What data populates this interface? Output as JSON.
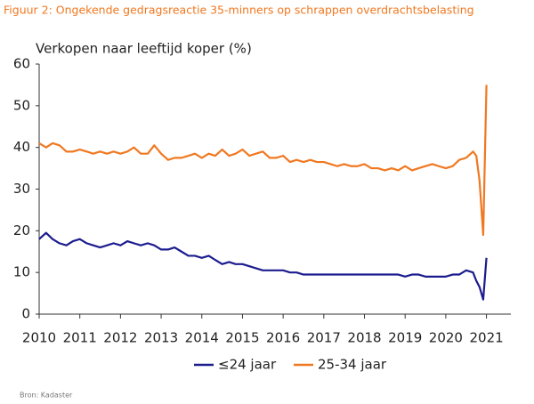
{
  "chart_data": {
    "type": "line",
    "title": "Figuur 2: Ongekende gedragsreactie 35-minners op schrappen overdrachtsbelasting",
    "ylabel": "Verkopen naar leeftijd koper (%)",
    "source": "Bron: Kadaster",
    "x": [
      2010,
      2010.17,
      2010.33,
      2010.5,
      2010.67,
      2010.83,
      2011,
      2011.17,
      2011.33,
      2011.5,
      2011.67,
      2011.83,
      2012,
      2012.17,
      2012.33,
      2012.5,
      2012.67,
      2012.83,
      2013,
      2013.17,
      2013.33,
      2013.5,
      2013.67,
      2013.83,
      2014,
      2014.17,
      2014.33,
      2014.5,
      2014.67,
      2014.83,
      2015,
      2015.17,
      2015.33,
      2015.5,
      2015.67,
      2015.83,
      2016,
      2016.17,
      2016.33,
      2016.5,
      2016.67,
      2016.83,
      2017,
      2017.17,
      2017.33,
      2017.5,
      2017.67,
      2017.83,
      2018,
      2018.17,
      2018.33,
      2018.5,
      2018.67,
      2018.83,
      2019,
      2019.17,
      2019.33,
      2019.5,
      2019.67,
      2019.83,
      2020,
      2020.17,
      2020.33,
      2020.5,
      2020.67,
      2020.75,
      2020.83,
      2020.92,
      2021
    ],
    "series": [
      {
        "name": "≤24 jaar",
        "color": "#1c1c8f",
        "values": [
          18,
          19.5,
          18,
          17,
          16.5,
          17.5,
          18,
          17,
          16.5,
          16,
          16.5,
          17,
          16.5,
          17.5,
          17,
          16.5,
          17,
          16.5,
          15.5,
          15.5,
          16,
          15,
          14,
          14,
          13.5,
          14,
          13,
          12,
          12.5,
          12,
          12,
          11.5,
          11,
          10.5,
          10.5,
          10.5,
          10.5,
          10,
          10,
          9.5,
          9.5,
          9.5,
          9.5,
          9.5,
          9.5,
          9.5,
          9.5,
          9.5,
          9.5,
          9.5,
          9.5,
          9.5,
          9.5,
          9.5,
          9,
          9.5,
          9.5,
          9,
          9,
          9,
          9,
          9.5,
          9.5,
          10.5,
          10,
          8,
          6.5,
          3.5,
          13.5
        ]
      },
      {
        "name": "25-34 jaar",
        "color": "#f07820",
        "values": [
          41,
          40,
          41,
          40.5,
          39,
          39,
          39.5,
          39,
          38.5,
          39,
          38.5,
          39,
          38.5,
          39,
          40,
          38.5,
          38.5,
          40.5,
          38.5,
          37,
          37.5,
          37.5,
          38,
          38.5,
          37.5,
          38.5,
          38,
          39.5,
          38,
          38.5,
          39.5,
          38,
          38.5,
          39,
          37.5,
          37.5,
          38,
          36.5,
          37,
          36.5,
          37,
          36.5,
          36.5,
          36,
          35.5,
          36,
          35.5,
          35.5,
          36,
          35,
          35,
          34.5,
          35,
          34.5,
          35.5,
          34.5,
          35,
          35.5,
          36,
          35.5,
          35,
          35.5,
          37,
          37.5,
          39,
          38,
          32,
          19,
          55
        ]
      }
    ],
    "xlim": [
      2010,
      2021.6
    ],
    "xticks": [
      2010,
      2011,
      2012,
      2013,
      2014,
      2015,
      2016,
      2017,
      2018,
      2019,
      2020,
      2021
    ],
    "ylim": [
      0,
      60
    ],
    "yticks": [
      0,
      10,
      20,
      30,
      40,
      50,
      60
    ],
    "grid": false,
    "legend": "bottom"
  }
}
